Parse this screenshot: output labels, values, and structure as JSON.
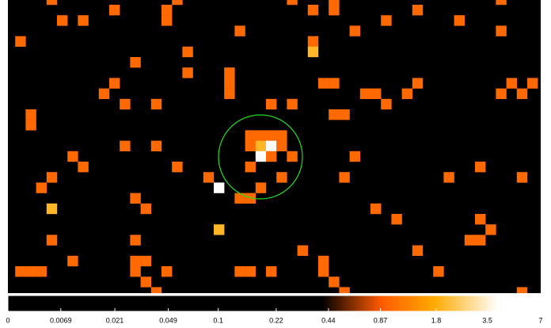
{
  "image": {
    "pixels": [
      [
        4,
        -1,
        1
      ],
      [
        16,
        -1,
        1
      ],
      [
        27,
        -1,
        1
      ],
      [
        31,
        -1,
        1
      ],
      [
        47,
        -1,
        1
      ],
      [
        10,
        0,
        1
      ],
      [
        15,
        0,
        1
      ],
      [
        29,
        0,
        1
      ],
      [
        31,
        0,
        1
      ],
      [
        39,
        0,
        1
      ],
      [
        5,
        1,
        1
      ],
      [
        7,
        1,
        1
      ],
      [
        15,
        1,
        1
      ],
      [
        36,
        1,
        1
      ],
      [
        43,
        1,
        1
      ],
      [
        22,
        2,
        1
      ],
      [
        33,
        2,
        1
      ],
      [
        47,
        2,
        1
      ],
      [
        1,
        3,
        1
      ],
      [
        29,
        3,
        1
      ],
      [
        17,
        4,
        1
      ],
      [
        29,
        4,
        2
      ],
      [
        12,
        5,
        1
      ],
      [
        17,
        6,
        1
      ],
      [
        21,
        6,
        1
      ],
      [
        10,
        7,
        1
      ],
      [
        21,
        7,
        1
      ],
      [
        30,
        7,
        1
      ],
      [
        31,
        7,
        1
      ],
      [
        39,
        7,
        1
      ],
      [
        48,
        7,
        1
      ],
      [
        50,
        7,
        1
      ],
      [
        9,
        8,
        1
      ],
      [
        21,
        8,
        1
      ],
      [
        34,
        8,
        1
      ],
      [
        35,
        8,
        1
      ],
      [
        38,
        8,
        1
      ],
      [
        47,
        8,
        1
      ],
      [
        49,
        8,
        1
      ],
      [
        11,
        9,
        1
      ],
      [
        14,
        9,
        1
      ],
      [
        25,
        9,
        1
      ],
      [
        27,
        9,
        1
      ],
      [
        36,
        9,
        1
      ],
      [
        2,
        10,
        1
      ],
      [
        31,
        10,
        1
      ],
      [
        32,
        10,
        1
      ],
      [
        2,
        11,
        1
      ],
      [
        23,
        12,
        1
      ],
      [
        24,
        12,
        1
      ],
      [
        25,
        12,
        1
      ],
      [
        26,
        12,
        1
      ],
      [
        11,
        13,
        1
      ],
      [
        14,
        13,
        1
      ],
      [
        23,
        13,
        1
      ],
      [
        24,
        13,
        2
      ],
      [
        25,
        13,
        4
      ],
      [
        26,
        13,
        1
      ],
      [
        6,
        14,
        1
      ],
      [
        24,
        14,
        4
      ],
      [
        25,
        14,
        1
      ],
      [
        27,
        14,
        1
      ],
      [
        33,
        14,
        1
      ],
      [
        7,
        15,
        1
      ],
      [
        16,
        15,
        1
      ],
      [
        23,
        15,
        1
      ],
      [
        45,
        15,
        1
      ],
      [
        4,
        16,
        1
      ],
      [
        19,
        16,
        1
      ],
      [
        26,
        16,
        1
      ],
      [
        32,
        16,
        1
      ],
      [
        42,
        16,
        1
      ],
      [
        49,
        16,
        1
      ],
      [
        3,
        17,
        1
      ],
      [
        20,
        17,
        4
      ],
      [
        24,
        17,
        1
      ],
      [
        12,
        18,
        1
      ],
      [
        22,
        18,
        1
      ],
      [
        23,
        18,
        1
      ],
      [
        4,
        19,
        2
      ],
      [
        13,
        19,
        1
      ],
      [
        35,
        19,
        1
      ],
      [
        37,
        20,
        1
      ],
      [
        45,
        20,
        1
      ],
      [
        20,
        21,
        2
      ],
      [
        46,
        21,
        1
      ],
      [
        4,
        22,
        1
      ],
      [
        12,
        22,
        1
      ],
      [
        44,
        22,
        1
      ],
      [
        45,
        22,
        1
      ],
      [
        28,
        23,
        1
      ],
      [
        39,
        23,
        1
      ],
      [
        6,
        24,
        1
      ],
      [
        12,
        24,
        1
      ],
      [
        13,
        24,
        1
      ],
      [
        30,
        24,
        1
      ],
      [
        1,
        25,
        1
      ],
      [
        2,
        25,
        1
      ],
      [
        3,
        25,
        1
      ],
      [
        12,
        25,
        1
      ],
      [
        15,
        25,
        1
      ],
      [
        22,
        25,
        1
      ],
      [
        23,
        25,
        1
      ],
      [
        25,
        25,
        1
      ],
      [
        30,
        25,
        1
      ],
      [
        41,
        25,
        1
      ],
      [
        13,
        26,
        1
      ],
      [
        31,
        26,
        1
      ],
      [
        14,
        27,
        1
      ],
      [
        32,
        27,
        1
      ],
      [
        49,
        27,
        1
      ]
    ]
  },
  "colorbar": {
    "range": [
      0,
      7
    ],
    "ticks": [
      0,
      0.0069,
      0.021,
      0.049,
      0.1,
      0.22,
      0.44,
      0.87,
      1.8,
      3.5,
      7
    ]
  }
}
